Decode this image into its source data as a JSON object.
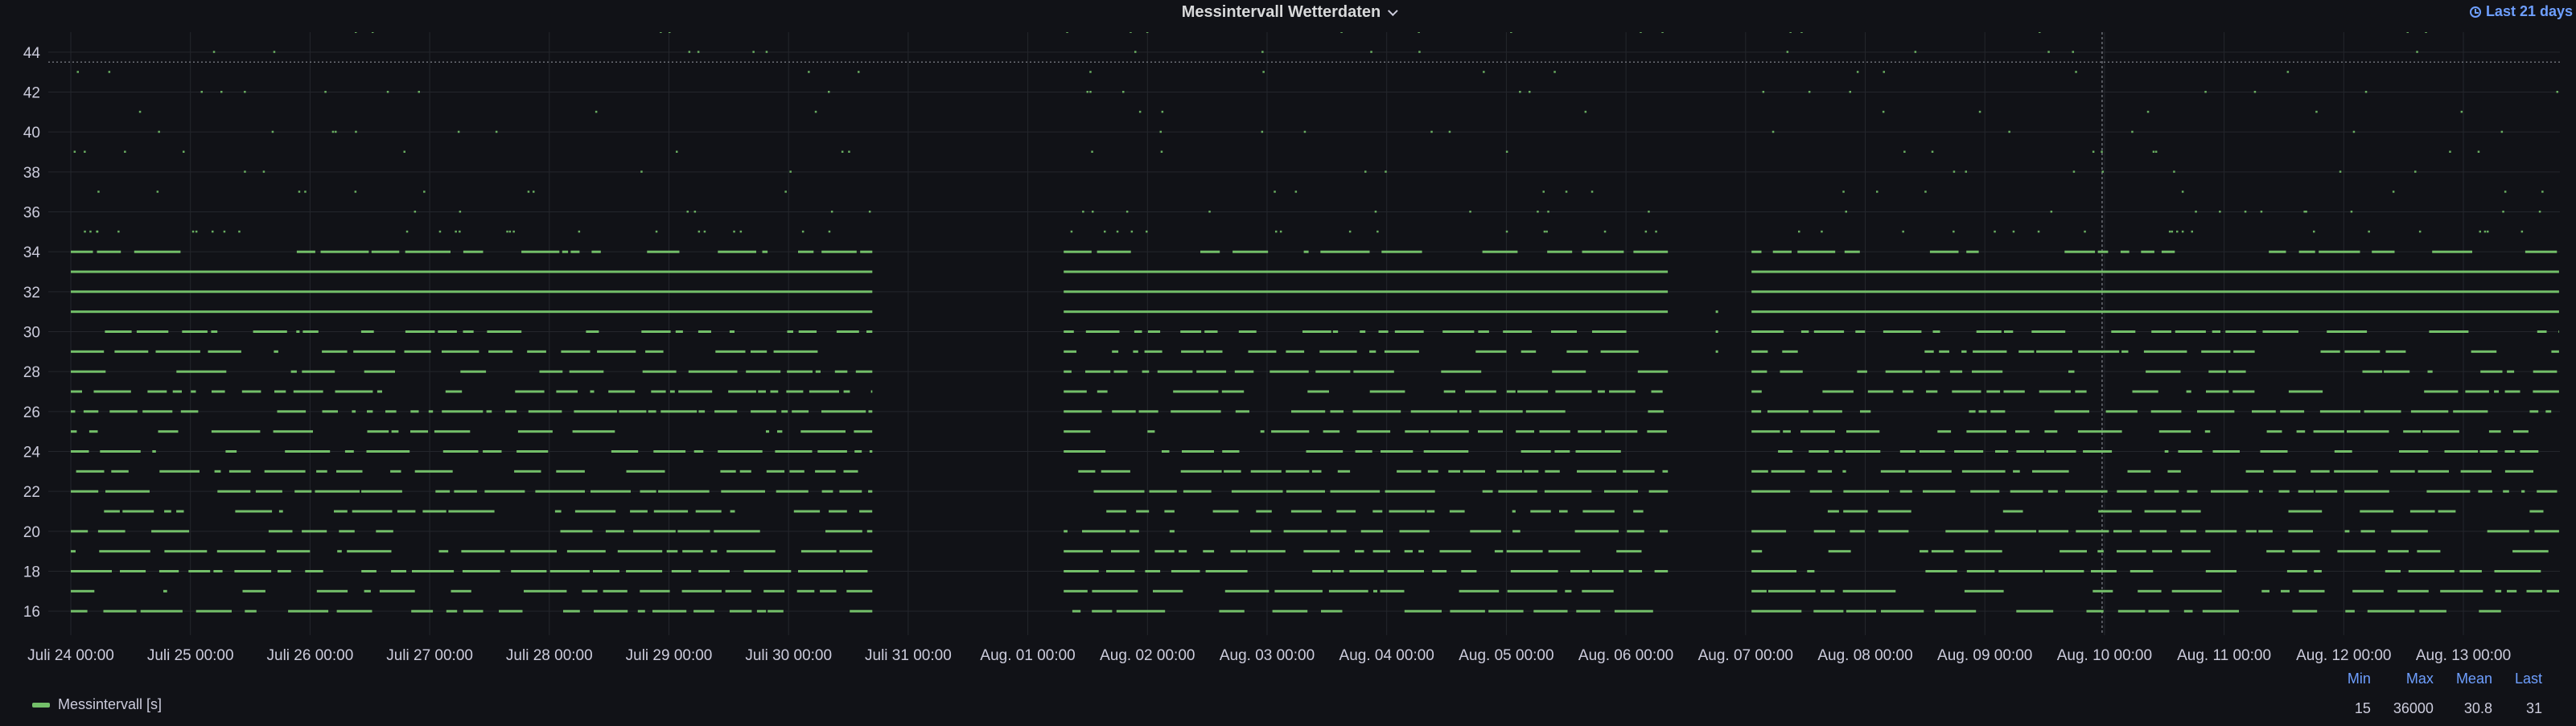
{
  "panel": {
    "title": "Messintervall Wetterdaten",
    "time_range": "Last 21 days"
  },
  "legend": {
    "series_name": "Messintervall [s]",
    "color": "#73bf69",
    "headers": {
      "min": "Min",
      "max": "Max",
      "mean": "Mean",
      "last": "Last"
    },
    "values": {
      "min": "15",
      "max": "36000",
      "mean": "30.8",
      "last": "31"
    }
  },
  "chart_data": {
    "type": "scatter",
    "title": "Messintervall Wetterdaten",
    "xlabel": "",
    "ylabel": "",
    "x_tick_labels": [
      "Juli 24 00:00",
      "Juli 25 00:00",
      "Juli 26 00:00",
      "Juli 27 00:00",
      "Juli 28 00:00",
      "Juli 29 00:00",
      "Juli 30 00:00",
      "Juli 31 00:00",
      "Aug. 01 00:00",
      "Aug. 02 00:00",
      "Aug. 03 00:00",
      "Aug. 04 00:00",
      "Aug. 05 00:00",
      "Aug. 06 00:00",
      "Aug. 07 00:00",
      "Aug. 08 00:00",
      "Aug. 09 00:00",
      "Aug. 10 00:00",
      "Aug. 11 00:00",
      "Aug. 12 00:00",
      "Aug. 13 00:00"
    ],
    "y_ticks": [
      16,
      18,
      20,
      22,
      24,
      26,
      28,
      30,
      32,
      34,
      36,
      38,
      40,
      42,
      44
    ],
    "ylim": [
      15,
      45
    ],
    "xlim_days": [
      -0.35,
      20.9
    ],
    "grid": true,
    "legend_position": "bottom-left",
    "series": [
      {
        "name": "Messintervall [s]",
        "color": "#73bf69",
        "data_segments_days": [
          [
            0.0,
            6.7
          ],
          [
            8.3,
            13.35
          ],
          [
            14.05,
            20.8
          ]
        ],
        "gap_days": [
          [
            6.7,
            8.3
          ],
          [
            13.35,
            14.05
          ]
        ],
        "dense_levels": [
          31,
          32,
          33
        ],
        "common_levels": [
          16,
          17,
          18,
          19,
          20,
          21,
          22,
          23,
          24,
          25,
          26,
          27,
          28,
          29,
          30,
          34
        ],
        "sparse_levels": [
          35,
          36,
          37,
          38,
          39,
          40,
          41,
          42,
          43,
          44,
          45
        ],
        "threshold": 43.5
      }
    ]
  }
}
